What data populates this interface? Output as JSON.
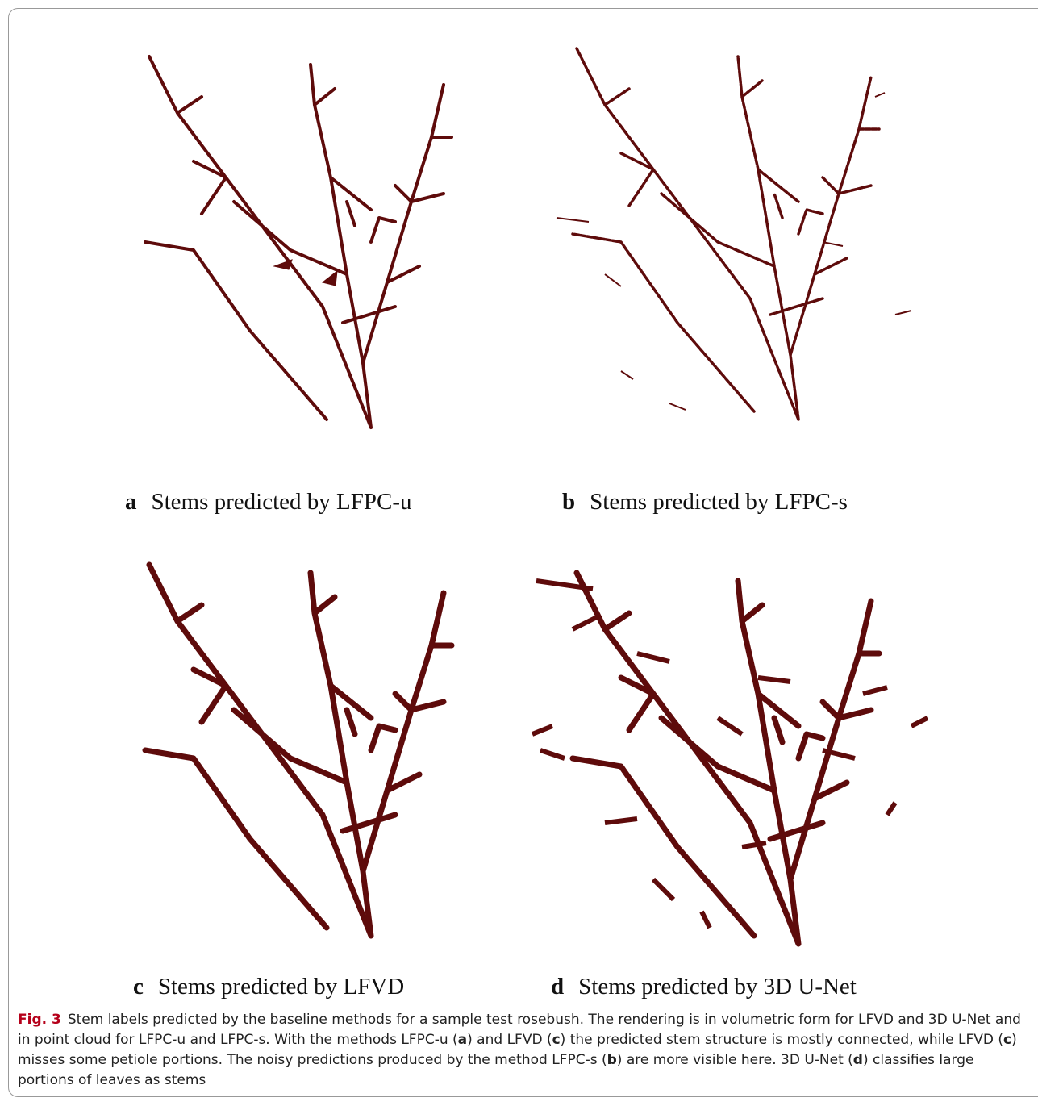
{
  "panels": [
    {
      "letter": "a",
      "caption": "Stems predicted by LFPC-u"
    },
    {
      "letter": "b",
      "caption": "Stems predicted by LFPC-s"
    },
    {
      "letter": "c",
      "caption": "Stems predicted by LFVD"
    },
    {
      "letter": "d",
      "caption": "Stems predicted by 3D U-Net"
    }
  ],
  "figure_caption": {
    "label": "Fig. 3",
    "parts": [
      "Stem labels predicted by the baseline methods for a sample test rosebush. The rendering is in volumetric form for LFVD and 3D U-Net and in point cloud for LFPC-u and LFPC-s. With the methods LFPC-u (",
      "a",
      ") and LFVD (",
      "c",
      ") the predicted stem structure is mostly connected, while LFVD (",
      "c",
      ") misses some petiole portions. The noisy predictions produced by the method LFPC-s (",
      "b",
      ") are more visible here. 3D U-Net (",
      "d",
      ") classifies large portions of leaves as stems"
    ]
  }
}
